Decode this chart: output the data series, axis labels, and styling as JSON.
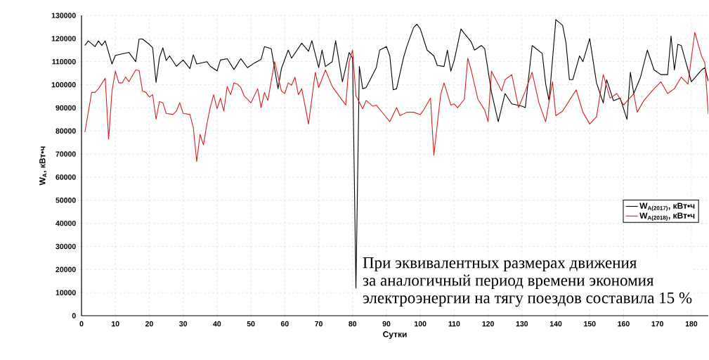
{
  "chart_data": {
    "type": "line",
    "xlabel": "Сутки",
    "ylabel": "W$_{A}$, кВт•ч",
    "xlim": [
      0,
      185
    ],
    "ylim": [
      0,
      130000
    ],
    "xticks": [
      0,
      10,
      20,
      30,
      40,
      50,
      60,
      70,
      80,
      90,
      100,
      110,
      120,
      130,
      140,
      150,
      160,
      170,
      180
    ],
    "yticks": [
      0,
      10000,
      20000,
      30000,
      40000,
      50000,
      60000,
      70000,
      80000,
      90000,
      100000,
      110000,
      120000,
      130000
    ],
    "grid": true,
    "legend": "bottom right",
    "marker": "none",
    "line_style": "solid",
    "annotations": [
      "При эквивалентных размерах движения",
      "за аналогичный период времени экономия",
      "электроэнергии на тягу поездов составила 15 %"
    ],
    "series": [
      {
        "name": "W$_{A(2017)}$, кВт•ч",
        "color": "#000000",
        "x": [
          1,
          2,
          4,
          5,
          6,
          7,
          9,
          10,
          14,
          16,
          17,
          18,
          20,
          21,
          22,
          23,
          24,
          25,
          26,
          28,
          30,
          32,
          33,
          34,
          37,
          38,
          40,
          41,
          43,
          45,
          47,
          49,
          51,
          53,
          54,
          56,
          58,
          59,
          61,
          62,
          65,
          67,
          68,
          70,
          71,
          72,
          74,
          75,
          77,
          79,
          80,
          81,
          82,
          83,
          84,
          87,
          88,
          90,
          91,
          92,
          93,
          95,
          96,
          98,
          99,
          100,
          102,
          104,
          105,
          107,
          108,
          109,
          110,
          112,
          113,
          115,
          116,
          118,
          119,
          121,
          123,
          125,
          127,
          130,
          131,
          133,
          136,
          137,
          138,
          140,
          142,
          143,
          144,
          145,
          147,
          148,
          150,
          152,
          154,
          155,
          157,
          159,
          161,
          162,
          163,
          165,
          167,
          169,
          171,
          173,
          174,
          175,
          176,
          177,
          180,
          183,
          184,
          185
        ],
        "values": [
          117000,
          119000,
          116500,
          119000,
          117000,
          119000,
          109000,
          112700,
          114000,
          110000,
          119800,
          119800,
          117500,
          116000,
          101000,
          111700,
          116000,
          110500,
          112500,
          108000,
          110700,
          107000,
          113000,
          109000,
          110000,
          108000,
          106000,
          110700,
          111300,
          106600,
          111300,
          107400,
          109400,
          111000,
          116500,
          115600,
          98300,
          107000,
          115000,
          111500,
          118000,
          114500,
          119100,
          107400,
          115000,
          107900,
          110000,
          119100,
          101300,
          114000,
          111500,
          11900,
          107900,
          98300,
          98800,
          107400,
          115000,
          116500,
          112500,
          97800,
          98300,
          111500,
          116500,
          124700,
          126200,
          124200,
          115000,
          112500,
          108400,
          107900,
          115000,
          105900,
          110500,
          124200,
          122200,
          118600,
          115000,
          117000,
          115600,
          96800,
          84000,
          96200,
          91700,
          90700,
          90100,
          117000,
          113500,
          100300,
          93100,
          128200,
          125700,
          118100,
          102200,
          102200,
          112500,
          110000,
          120000,
          100800,
          92100,
          102200,
          93100,
          94200,
          85000,
          105400,
          96200,
          103300,
          115000,
          106400,
          104400,
          104400,
          121100,
          106400,
          117500,
          117000,
          101300,
          106400,
          107400,
          101500
        ]
      },
      {
        "name": "W$_{A(2018)}$, кВт•ч",
        "color": "#d62020",
        "x": [
          1,
          3,
          4,
          5,
          7,
          8,
          9,
          10,
          11,
          12,
          13,
          14,
          16,
          17,
          18,
          19,
          20,
          21,
          22,
          23,
          24,
          25,
          27,
          28,
          29,
          30,
          32,
          33,
          34,
          35,
          36,
          37,
          38,
          39,
          40,
          41,
          42,
          43,
          44,
          45,
          46,
          47,
          48,
          50,
          52,
          53,
          54,
          55,
          57,
          59,
          60,
          61,
          62,
          63,
          64,
          65,
          67,
          69,
          70,
          72,
          74,
          76,
          78,
          79,
          80,
          81,
          83,
          84,
          86,
          87,
          89,
          91,
          93,
          94,
          96,
          98,
          100,
          101,
          103,
          104,
          106,
          107,
          109,
          110,
          111,
          113,
          114,
          115,
          117,
          119,
          120,
          121,
          124,
          125,
          127,
          129,
          131,
          133,
          135,
          137,
          139,
          140,
          142,
          144,
          146,
          148,
          150,
          152,
          154,
          156,
          158,
          160,
          163,
          164,
          166,
          169,
          171,
          173,
          175,
          177,
          179,
          181,
          183,
          184,
          185
        ],
        "values": [
          79500,
          96700,
          96700,
          98300,
          102800,
          76400,
          97300,
          105900,
          100800,
          100800,
          103300,
          101300,
          106400,
          106200,
          97300,
          96700,
          94700,
          95700,
          85100,
          92700,
          92200,
          87600,
          87100,
          88600,
          92200,
          87600,
          87100,
          81500,
          66800,
          78500,
          73900,
          83000,
          90200,
          95700,
          89600,
          94200,
          88600,
          99300,
          95700,
          100800,
          100300,
          98800,
          95200,
          92200,
          98300,
          90100,
          96700,
          93200,
          110000,
          97300,
          96200,
          100800,
          99800,
          103300,
          95700,
          98300,
          83000,
          105400,
          98800,
          106400,
          99300,
          95200,
          91200,
          110000,
          115000,
          95200,
          89600,
          93200,
          90700,
          91200,
          87600,
          84000,
          90100,
          86600,
          88100,
          88100,
          87100,
          89100,
          94200,
          69500,
          95700,
          100800,
          91200,
          91700,
          90100,
          93700,
          111500,
          106400,
          93700,
          89100,
          84000,
          105900,
          97300,
          102200,
          104400,
          90100,
          97300,
          105400,
          92200,
          84000,
          101300,
          86600,
          88600,
          93200,
          97800,
          88100,
          83000,
          86100,
          104400,
          94200,
          96200,
          91200,
          96200,
          88100,
          93200,
          98300,
          101300,
          96200,
          98300,
          103300,
          100300,
          122700,
          112500,
          109400,
          87200
        ]
      }
    ]
  }
}
